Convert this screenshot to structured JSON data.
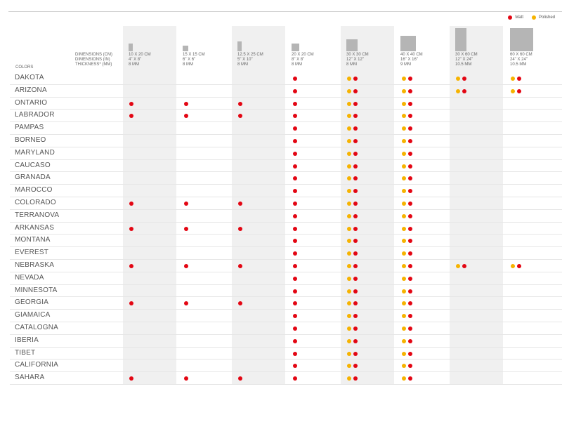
{
  "legend": {
    "matt": "Matt",
    "polished": "Polished"
  },
  "colors_red": "#e30613",
  "colors_yellow": "#f6b300",
  "header": {
    "colors": "COLORS",
    "dim_cm": "DIMENSIONS (CM)",
    "dim_in": "DIMENSIONS (IN)",
    "thickness": "THICKNESS* (MM)"
  },
  "sizes": [
    {
      "cm": "10 X 20 CM",
      "in": "4\" X 8\"",
      "mm": "8 MM"
    },
    {
      "cm": "15 X 15 CM",
      "in": "6\" X 6\"",
      "mm": "8 MM"
    },
    {
      "cm": "12.5 X 25 CM",
      "in": "5\" X 10\"",
      "mm": "8 MM"
    },
    {
      "cm": "20 X 20 CM",
      "in": "8\" X 8\"",
      "mm": "8 MM"
    },
    {
      "cm": "30 X 30 CM",
      "in": "12\" X 12\"",
      "mm": "8 MM"
    },
    {
      "cm": "40 X 40 CM",
      "in": "16\" X 16\"",
      "mm": "9 MM"
    },
    {
      "cm": "30 X 60 CM",
      "in": "12\" X 24\"",
      "mm": "10.5 MM"
    },
    {
      "cm": "60 X 60 CM",
      "in": "24\" X 24\"",
      "mm": "10.5 MM"
    }
  ],
  "rows": [
    {
      "name": "DAKOTA",
      "a": [
        "",
        "",
        "",
        "M",
        "PM",
        "PM",
        "PM",
        "PM"
      ]
    },
    {
      "name": "ARIZONA",
      "a": [
        "",
        "",
        "",
        "M",
        "PM",
        "PM",
        "PM",
        "PM"
      ]
    },
    {
      "name": "ONTARIO",
      "a": [
        "M",
        "M",
        "M",
        "M",
        "PM",
        "PM",
        "",
        ""
      ]
    },
    {
      "name": "LABRADOR",
      "a": [
        "M",
        "M",
        "M",
        "M",
        "PM",
        "PM",
        "",
        ""
      ]
    },
    {
      "name": "PAMPAS",
      "a": [
        "",
        "",
        "",
        "M",
        "PM",
        "PM",
        "",
        ""
      ]
    },
    {
      "name": "BORNEO",
      "a": [
        "",
        "",
        "",
        "M",
        "PM",
        "PM",
        "",
        ""
      ]
    },
    {
      "name": "MARYLAND",
      "a": [
        "",
        "",
        "",
        "M",
        "PM",
        "PM",
        "",
        ""
      ]
    },
    {
      "name": "CAUCASO",
      "a": [
        "",
        "",
        "",
        "M",
        "PM",
        "PM",
        "",
        ""
      ]
    },
    {
      "name": "GRANADA",
      "a": [
        "",
        "",
        "",
        "M",
        "PM",
        "PM",
        "",
        ""
      ]
    },
    {
      "name": "MAROCCO",
      "a": [
        "",
        "",
        "",
        "M",
        "PM",
        "PM",
        "",
        ""
      ]
    },
    {
      "name": "COLORADO",
      "a": [
        "M",
        "M",
        "M",
        "M",
        "PM",
        "PM",
        "",
        ""
      ]
    },
    {
      "name": "TERRANOVA",
      "a": [
        "",
        "",
        "",
        "M",
        "PM",
        "PM",
        "",
        ""
      ]
    },
    {
      "name": "ARKANSAS",
      "a": [
        "M",
        "M",
        "M",
        "M",
        "PM",
        "PM",
        "",
        ""
      ]
    },
    {
      "name": "MONTANA",
      "a": [
        "",
        "",
        "",
        "M",
        "PM",
        "PM",
        "",
        ""
      ]
    },
    {
      "name": "EVEREST",
      "a": [
        "",
        "",
        "",
        "M",
        "PM",
        "PM",
        "",
        ""
      ]
    },
    {
      "name": "NEBRASKA",
      "a": [
        "M",
        "M",
        "M",
        "M",
        "PM",
        "PM",
        "PM",
        "PM"
      ]
    },
    {
      "name": "NEVADA",
      "a": [
        "",
        "",
        "",
        "M",
        "PM",
        "PM",
        "",
        ""
      ]
    },
    {
      "name": "MINNESOTA",
      "a": [
        "",
        "",
        "",
        "M",
        "PM",
        "PM",
        "",
        ""
      ]
    },
    {
      "name": "GEORGIA",
      "a": [
        "M",
        "M",
        "M",
        "M",
        "PM",
        "PM",
        "",
        ""
      ]
    },
    {
      "name": "GIAMAICA",
      "a": [
        "",
        "",
        "",
        "M",
        "PM",
        "PM",
        "",
        ""
      ]
    },
    {
      "name": "CATALOGNA",
      "a": [
        "",
        "",
        "",
        "M",
        "PM",
        "PM",
        "",
        ""
      ]
    },
    {
      "name": "IBERIA",
      "a": [
        "",
        "",
        "",
        "M",
        "PM",
        "PM",
        "",
        ""
      ]
    },
    {
      "name": "TIBET",
      "a": [
        "",
        "",
        "",
        "M",
        "PM",
        "PM",
        "",
        ""
      ]
    },
    {
      "name": "CALIFORNIA",
      "a": [
        "",
        "",
        "",
        "M",
        "PM",
        "PM",
        "",
        ""
      ]
    },
    {
      "name": "SAHARA",
      "a": [
        "M",
        "M",
        "M",
        "M",
        "PM",
        "PM",
        "",
        ""
      ]
    }
  ]
}
